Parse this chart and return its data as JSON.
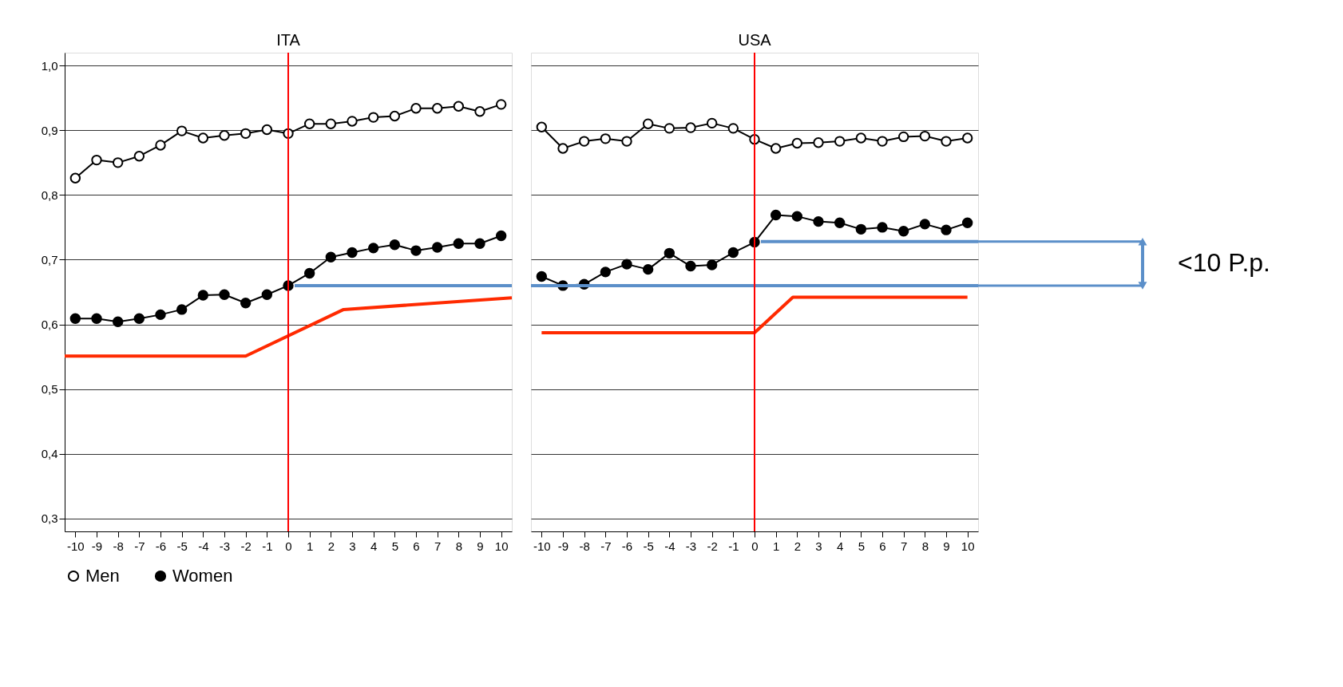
{
  "chart_data": [
    {
      "type": "line",
      "title": "ITA",
      "x": [
        -10,
        -9,
        -8,
        -7,
        -6,
        -5,
        -4,
        -3,
        -2,
        -1,
        0,
        1,
        2,
        3,
        4,
        5,
        6,
        7,
        8,
        9,
        10
      ],
      "xlim": [
        -10.5,
        10.5
      ],
      "xticks": [
        -10,
        -9,
        -8,
        -7,
        -6,
        -5,
        -4,
        -3,
        -2,
        -1,
        0,
        1,
        2,
        3,
        4,
        5,
        6,
        7,
        8,
        9,
        10
      ],
      "ylim": [
        0.28,
        1.02
      ],
      "yticks": [
        {
          "value": 0.3,
          "label": "0,3"
        },
        {
          "value": 0.4,
          "label": "0,4"
        },
        {
          "value": 0.5,
          "label": "0,5"
        },
        {
          "value": 0.6,
          "label": "0,6"
        },
        {
          "value": 0.7,
          "label": "0,7"
        },
        {
          "value": 0.8,
          "label": "0,8"
        },
        {
          "value": 0.9,
          "label": "0,9"
        },
        {
          "value": 1.0,
          "label": "1,0"
        }
      ],
      "grid": "y",
      "legend": "bottom",
      "marker": "circle",
      "ref_lines": [
        {
          "axis": "x",
          "value": 0,
          "color": "#ff0000"
        }
      ],
      "series": [
        {
          "name": "Men",
          "color": "#000000",
          "values": [
            0.826,
            0.854,
            0.85,
            0.86,
            0.877,
            0.899,
            0.888,
            0.892,
            0.895,
            0.901,
            0.895,
            0.91,
            0.91,
            0.914,
            0.92,
            0.922,
            0.934,
            0.934,
            0.937,
            0.929,
            0.94
          ]
        },
        {
          "name": "Women",
          "color": "#000000",
          "values": [
            0.609,
            0.609,
            0.604,
            0.609,
            0.615,
            0.623,
            0.645,
            0.646,
            0.633,
            0.646,
            0.66,
            0.679,
            0.704,
            0.711,
            0.718,
            0.723,
            0.714,
            0.719,
            0.725,
            0.725,
            0.737
          ]
        },
        {
          "type": "line",
          "marker": "none",
          "color": "#ff2a00",
          "x": [
            -10.5,
            -2,
            2.6,
            10.5
          ],
          "values": [
            0.551,
            0.551,
            0.623,
            0.641
          ]
        },
        {
          "type": "line",
          "marker": "none",
          "color": "#5b8fc9",
          "x": [
            0.3,
            10.5
          ],
          "values": [
            0.66,
            0.66
          ]
        }
      ]
    },
    {
      "type": "line",
      "title": "USA",
      "x": [
        -10,
        -9,
        -8,
        -7,
        -6,
        -5,
        -4,
        -3,
        -2,
        -1,
        0,
        1,
        2,
        3,
        4,
        5,
        6,
        7,
        8,
        9,
        10
      ],
      "xlim": [
        -10.5,
        10.5
      ],
      "xticks": [
        -10,
        -9,
        -8,
        -7,
        -6,
        -5,
        -4,
        -3,
        -2,
        -1,
        0,
        1,
        2,
        3,
        4,
        5,
        6,
        7,
        8,
        9,
        10
      ],
      "ylim": [
        0.28,
        1.02
      ],
      "yticks": [
        0.3,
        0.4,
        0.5,
        0.6,
        0.7,
        0.8,
        0.9,
        1.0
      ],
      "tick_labels": "x",
      "grid": "y",
      "legend": "bottom",
      "marker": "circle",
      "ref_lines": [
        {
          "axis": "x",
          "value": 0,
          "color": "#ff0000"
        }
      ],
      "annotations": [
        "<10 P.p."
      ],
      "series": [
        {
          "name": "Men",
          "color": "#000000",
          "values": [
            0.905,
            0.872,
            0.883,
            0.887,
            0.883,
            0.91,
            0.903,
            0.904,
            0.911,
            0.903,
            0.886,
            0.872,
            0.88,
            0.881,
            0.883,
            0.888,
            0.883,
            0.89,
            0.891,
            0.883,
            0.888
          ]
        },
        {
          "name": "Women",
          "color": "#000000",
          "values": [
            0.674,
            0.66,
            0.662,
            0.681,
            0.693,
            0.685,
            0.71,
            0.69,
            0.692,
            0.711,
            0.727,
            0.769,
            0.767,
            0.759,
            0.757,
            0.747,
            0.75,
            0.744,
            0.755,
            0.746,
            0.757
          ]
        },
        {
          "type": "line",
          "marker": "none",
          "color": "#ff2a00",
          "x": [
            -10,
            0,
            1.8,
            10
          ],
          "values": [
            0.587,
            0.587,
            0.642,
            0.642
          ]
        },
        {
          "type": "line",
          "marker": "none",
          "color": "#5b8fc9",
          "x": [
            -10.5,
            10.5
          ],
          "values": [
            0.66,
            0.66
          ]
        },
        {
          "type": "line",
          "marker": "none",
          "color": "#5b8fc9",
          "x": [
            0.3,
            10.5
          ],
          "values": [
            0.728,
            0.728
          ]
        }
      ]
    }
  ]
}
